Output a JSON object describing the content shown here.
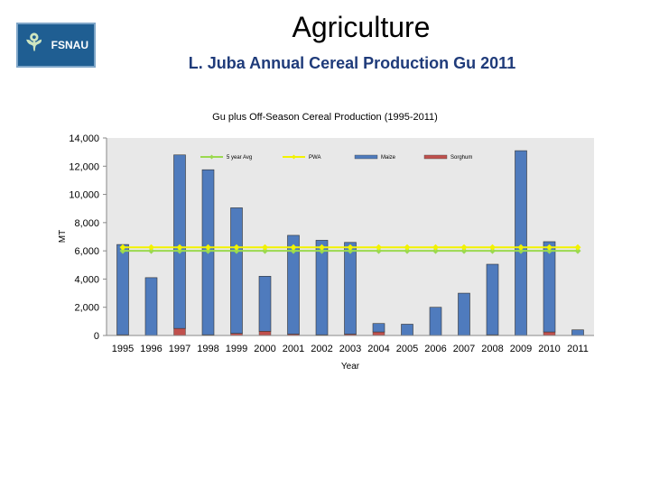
{
  "slide": {
    "title": "Agriculture",
    "subtitle": "L. Juba Annual Cereal Production Gu 2011",
    "logo_text": "FSNAU"
  },
  "colors": {
    "maize": "#4f7bbd",
    "sorghum": "#c0504d",
    "avg5": "#9bd94f",
    "pwa": "#f2f200",
    "plot_bg": "#e8e8e8"
  },
  "chart_data": {
    "type": "bar",
    "title": "Gu plus Off-Season Cereal Production (1995-2011)",
    "xlabel": "Year",
    "ylabel": "MT",
    "ylim": [
      0,
      14000
    ],
    "yticks": [
      "0",
      "2,000",
      "4,000",
      "6,000",
      "8,000",
      "10,000",
      "12,000",
      "14,000"
    ],
    "categories": [
      "1995",
      "1996",
      "1997",
      "1998",
      "1999",
      "2000",
      "2001",
      "2002",
      "2003",
      "2004",
      "2005",
      "2006",
      "2007",
      "2008",
      "2009",
      "2010",
      "2011"
    ],
    "legend_position": "top",
    "grid": false,
    "stacked": true,
    "series": [
      {
        "name": "5 year Avg",
        "type": "line",
        "color": "#9bd94f",
        "values": [
          6000,
          6000,
          6000,
          6000,
          6000,
          6000,
          6000,
          6000,
          6000,
          6000,
          6000,
          6000,
          6000,
          6000,
          6000,
          6000,
          6000
        ]
      },
      {
        "name": "PWA",
        "type": "line",
        "color": "#f2f200",
        "values": [
          6250,
          6250,
          6250,
          6250,
          6250,
          6250,
          6250,
          6250,
          6250,
          6250,
          6250,
          6250,
          6250,
          6250,
          6250,
          6250,
          6250
        ]
      },
      {
        "name": "Maize",
        "type": "bar",
        "color": "#4f7bbd",
        "values": [
          6400,
          4100,
          12300,
          11700,
          8900,
          3900,
          7000,
          6700,
          6500,
          600,
          800,
          2000,
          3000,
          5000,
          13100,
          6400,
          400
        ]
      },
      {
        "name": "Sorghum",
        "type": "bar",
        "color": "#c0504d",
        "values": [
          50,
          0,
          500,
          50,
          150,
          300,
          100,
          50,
          100,
          250,
          0,
          0,
          0,
          50,
          0,
          250,
          0
        ]
      }
    ]
  }
}
